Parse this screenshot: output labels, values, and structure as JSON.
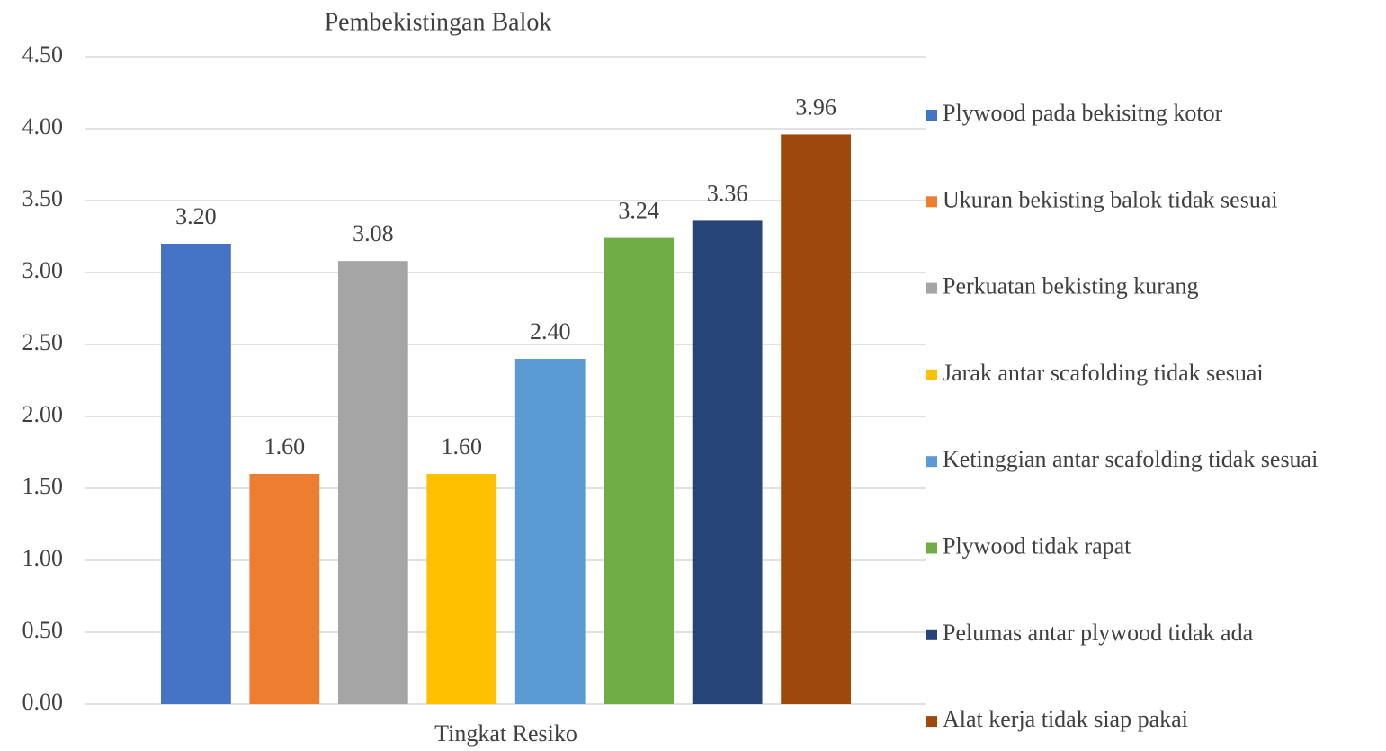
{
  "chart_data": {
    "type": "bar",
    "title": "Pembekistingan Balok",
    "categories": [
      "Tingkat Resiko"
    ],
    "series": [
      {
        "name": "Plywood pada bekisitng kotor",
        "color": "#4472c4",
        "values": [
          3.2
        ],
        "value_labels": [
          "3.20"
        ]
      },
      {
        "name": "Ukuran bekisting balok tidak sesuai",
        "color": "#ed7d31",
        "values": [
          1.6
        ],
        "value_labels": [
          "1.60"
        ]
      },
      {
        "name": "Perkuatan bekisting kurang",
        "color": "#a5a5a5",
        "values": [
          3.08
        ],
        "value_labels": [
          "3.08"
        ]
      },
      {
        "name": "Jarak antar scafolding tidak sesuai",
        "color": "#ffc000",
        "values": [
          1.6
        ],
        "value_labels": [
          "1.60"
        ]
      },
      {
        "name": "Ketinggian antar scafolding tidak sesuai",
        "color": "#5b9bd5",
        "values": [
          2.4
        ],
        "value_labels": [
          "2.40"
        ]
      },
      {
        "name": "Plywood tidak rapat",
        "color": "#70ad47",
        "values": [
          3.24
        ],
        "value_labels": [
          "3.24"
        ]
      },
      {
        "name": "Pelumas antar plywood tidak ada",
        "color": "#264478",
        "values": [
          3.36
        ],
        "value_labels": [
          "3.36"
        ]
      },
      {
        "name": "Alat kerja tidak siap pakai",
        "color": "#9e480e",
        "values": [
          3.96
        ],
        "value_labels": [
          "3.96"
        ]
      }
    ],
    "ylim": [
      0,
      4.5
    ],
    "yticks": [
      {
        "value": 0,
        "label": "0.00"
      },
      {
        "value": 0.5,
        "label": "0.50"
      },
      {
        "value": 1,
        "label": "1.00"
      },
      {
        "value": 1.5,
        "label": "1.50"
      },
      {
        "value": 2,
        "label": "2.00"
      },
      {
        "value": 2.5,
        "label": "2.50"
      },
      {
        "value": 3,
        "label": "3.00"
      },
      {
        "value": 3.5,
        "label": "3.50"
      },
      {
        "value": 4,
        "label": "4.00"
      },
      {
        "value": 4.5,
        "label": "4.50"
      }
    ],
    "grid": true,
    "legend": "right"
  }
}
